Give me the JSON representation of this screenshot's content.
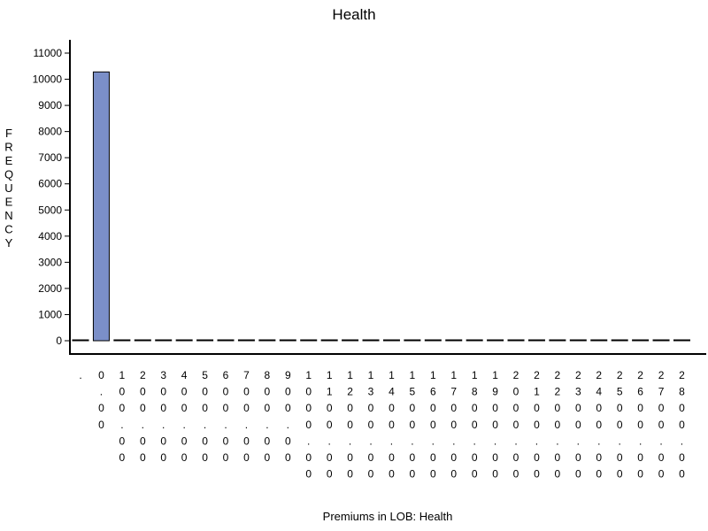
{
  "chart_data": {
    "type": "bar",
    "title": "Health",
    "xlabel": "Premiums in LOB: Health",
    "ylabel": "FREQUENCY",
    "ylim": [
      0,
      11000
    ],
    "yticks": [
      0,
      1000,
      2000,
      3000,
      4000,
      5000,
      6000,
      7000,
      8000,
      9000,
      10000,
      11000
    ],
    "grid": false,
    "categories": [
      ".",
      "0.00",
      "100.00",
      "200.00",
      "300.00",
      "400.00",
      "500.00",
      "600.00",
      "700.00",
      "800.00",
      "900.00",
      "1000.00",
      "1100.00",
      "1200.00",
      "1300.00",
      "1400.00",
      "1500.00",
      "1600.00",
      "1700.00",
      "1800.00",
      "1900.00",
      "2000.00",
      "2100.00",
      "2200.00",
      "2300.00",
      "2400.00",
      "2500.00",
      "2600.00",
      "2700.00",
      "2800.00"
    ],
    "values": [
      30,
      10280,
      10,
      10,
      0,
      0,
      0,
      0,
      5,
      0,
      0,
      0,
      0,
      0,
      0,
      0,
      0,
      0,
      0,
      0,
      0,
      0,
      0,
      0,
      0,
      0,
      0,
      0,
      0,
      5
    ],
    "bar_color": "#7B8FC8"
  }
}
